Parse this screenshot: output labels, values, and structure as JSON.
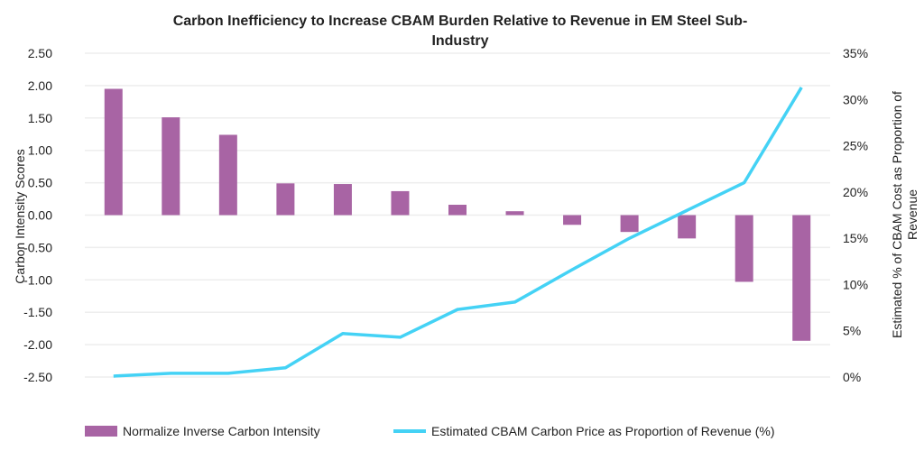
{
  "chart_data": {
    "type": "bar+line",
    "title_line1": "Carbon Inefficiency  to Increase  CBAM Burden Relative to Revenue in EM Steel Sub-",
    "title_line2": "Industry",
    "ylabel_left": "Carbon Intensity Scores",
    "ylabel_right_line1": "Estimated % of CBAM Cost as   Proportion of",
    "ylabel_right_line2": "Revenue",
    "ylim_left": [
      -2.5,
      2.5
    ],
    "ylim_right": [
      0,
      35
    ],
    "left_ticks": [
      "2.50",
      "2.00",
      "1.50",
      "1.00",
      "0.50",
      "0.00",
      "-0.50",
      "-1.00",
      "-1.50",
      "-2.00",
      "-2.50"
    ],
    "right_ticks": [
      "35%",
      "30%",
      "25%",
      "20%",
      "15%",
      "10%",
      "5%",
      "0%"
    ],
    "grid": true,
    "legend_placement": "bottom",
    "colors": {
      "bars": "#a864a4",
      "line": "#44d2f5",
      "grid": "#eeeeee"
    },
    "series": [
      {
        "name": "Normalize Inverse Carbon Intensity",
        "type": "bar",
        "axis": "left",
        "values": [
          1.95,
          1.51,
          1.24,
          0.49,
          0.48,
          0.37,
          0.16,
          0.06,
          -0.15,
          -0.26,
          -0.36,
          -1.03,
          -1.94
        ]
      },
      {
        "name": "Estimated CBAM Carbon Price as Proportion of  Revenue (%)",
        "type": "line",
        "axis": "right",
        "values": [
          0.1,
          0.4,
          0.4,
          1.0,
          4.7,
          4.3,
          7.3,
          8.1,
          11.6,
          15.0,
          18.0,
          21.0,
          31.3
        ]
      }
    ]
  }
}
